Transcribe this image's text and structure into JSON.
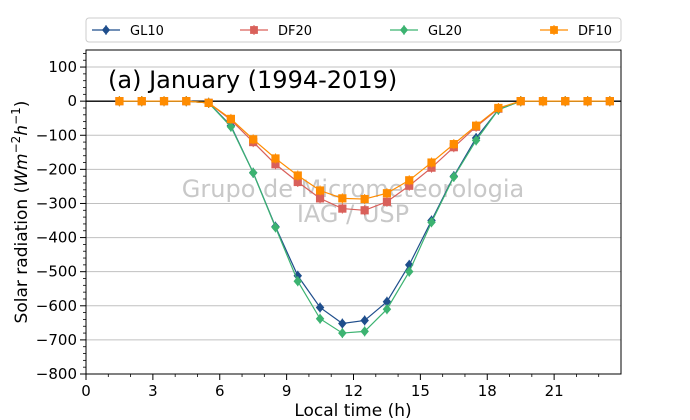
{
  "chart_data": {
    "type": "line",
    "title": "(a) January (1994-2019)",
    "xlabel": "Local time (h)",
    "ylabel_base": "Solar radiation (",
    "ylabel_unit_main": "Wm",
    "ylabel_exp1": "−2",
    "ylabel_unit_h": "h",
    "ylabel_exp2": "−1",
    "ylabel_close": ")",
    "xlim": [
      0,
      24
    ],
    "ylim": [
      -800,
      150
    ],
    "xticks": [
      0,
      3,
      6,
      9,
      12,
      15,
      18,
      21
    ],
    "xtick_labels": [
      "0",
      "3",
      "6",
      "9",
      "12",
      "15",
      "18",
      "21"
    ],
    "yticks": [
      -800,
      -700,
      -600,
      -500,
      -400,
      -300,
      -200,
      -100,
      0,
      100
    ],
    "ytick_labels": [
      "−800",
      "−700",
      "−600",
      "−500",
      "−400",
      "−300",
      "−200",
      "−100",
      "0",
      "100"
    ],
    "grid": "horizontal",
    "legend_position": "top",
    "zero_line": true,
    "watermark": [
      "Grupo de Micrometeorologia",
      "IAG / USP"
    ],
    "x": [
      1.5,
      2.5,
      3.5,
      4.5,
      5.5,
      6.5,
      7.5,
      8.5,
      9.5,
      10.5,
      11.5,
      12.5,
      13.5,
      14.5,
      15.5,
      16.5,
      17.5,
      18.5,
      19.5,
      20.5,
      21.5,
      22.5,
      23.5
    ],
    "series": [
      {
        "name": "GL10",
        "color": "#1f4e8c",
        "marker": "diamond",
        "values": [
          0,
          0,
          0,
          0,
          -5,
          -72,
          -210,
          -368,
          -512,
          -605,
          -652,
          -643,
          -588,
          -480,
          -350,
          -220,
          -108,
          -25,
          0,
          0,
          0,
          0,
          0
        ]
      },
      {
        "name": "DF20",
        "color": "#d9605a",
        "marker": "square",
        "values": [
          0,
          0,
          0,
          0,
          -5,
          -55,
          -120,
          -185,
          -237,
          -285,
          -315,
          -320,
          -295,
          -248,
          -195,
          -135,
          -75,
          -22,
          0,
          0,
          0,
          0,
          0
        ]
      },
      {
        "name": "GL20",
        "color": "#3cb371",
        "marker": "diamond",
        "values": [
          0,
          0,
          0,
          0,
          -5,
          -75,
          -210,
          -370,
          -528,
          -638,
          -680,
          -675,
          -610,
          -500,
          -355,
          -222,
          -115,
          -25,
          0,
          0,
          0,
          0,
          0
        ]
      },
      {
        "name": "DF10",
        "color": "#ff8c00",
        "marker": "square",
        "values": [
          0,
          0,
          0,
          0,
          -5,
          -52,
          -112,
          -168,
          -218,
          -262,
          -285,
          -287,
          -270,
          -232,
          -180,
          -126,
          -72,
          -20,
          0,
          0,
          0,
          0,
          0
        ]
      }
    ]
  }
}
